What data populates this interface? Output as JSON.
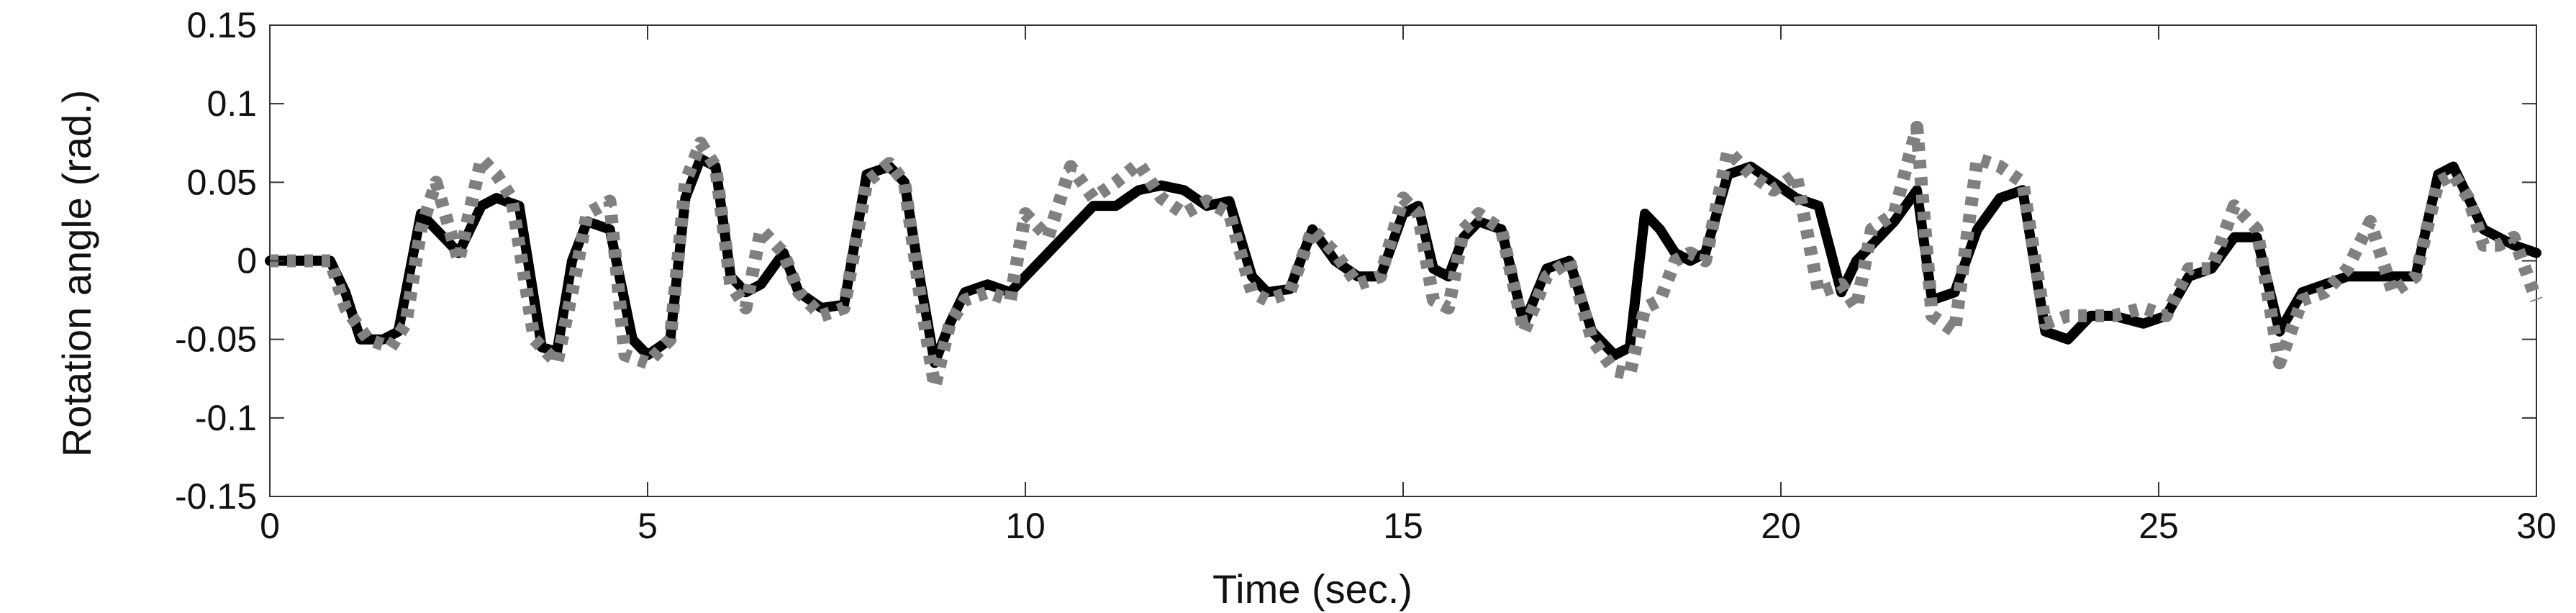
{
  "chart_data": {
    "type": "line",
    "title": "",
    "xlabel": "Time (sec.)",
    "ylabel": "Rotation angle (rad.)",
    "xlim": [
      0,
      30
    ],
    "ylim": [
      -0.15,
      0.15
    ],
    "xticks": [
      0,
      5,
      10,
      15,
      20,
      25,
      30
    ],
    "yticks": [
      -0.15,
      -0.1,
      -0.05,
      0,
      0.05,
      0.1,
      0.15
    ],
    "xtick_labels": [
      "0",
      "5",
      "10",
      "15",
      "20",
      "25",
      "30"
    ],
    "ytick_labels": [
      "-0.15",
      "-0.1",
      "-0.05",
      "0",
      "0.05",
      "0.1",
      "0.15"
    ],
    "grid": false,
    "legend": "none",
    "series": [
      {
        "color": "#000000",
        "style": "solid",
        "x": [
          0,
          0.8,
          1.0,
          1.2,
          1.5,
          1.7,
          2.0,
          2.2,
          2.5,
          2.8,
          3.0,
          3.3,
          3.6,
          3.8,
          4.0,
          4.2,
          4.5,
          4.8,
          5.0,
          5.3,
          5.5,
          5.7,
          5.9,
          6.1,
          6.3,
          6.5,
          6.8,
          7.0,
          7.3,
          7.6,
          7.9,
          8.2,
          8.4,
          8.6,
          8.8,
          9.0,
          9.2,
          9.5,
          9.8,
          10.0,
          10.3,
          10.6,
          10.9,
          11.2,
          11.5,
          11.8,
          12.1,
          12.4,
          12.7,
          13.0,
          13.2,
          13.5,
          13.8,
          14.1,
          14.4,
          14.7,
          15.0,
          15.2,
          15.4,
          15.6,
          15.8,
          16.0,
          16.3,
          16.6,
          16.9,
          17.2,
          17.5,
          17.8,
          18.0,
          18.2,
          18.4,
          18.6,
          18.8,
          19.0,
          19.3,
          19.6,
          19.9,
          20.2,
          20.5,
          20.8,
          21.0,
          21.2,
          21.5,
          21.8,
          22.0,
          22.3,
          22.6,
          22.9,
          23.2,
          23.5,
          23.8,
          24.1,
          24.4,
          24.8,
          25.1,
          25.4,
          25.7,
          26.0,
          26.3,
          26.6,
          26.9,
          27.2,
          27.5,
          27.8,
          28.1,
          28.4,
          28.7,
          28.9,
          29.1,
          29.3,
          29.5,
          29.7,
          30.0
        ],
        "y": [
          0,
          0,
          -0.02,
          -0.05,
          -0.05,
          -0.045,
          0.03,
          0.02,
          0.005,
          0.035,
          0.04,
          0.035,
          -0.055,
          -0.058,
          0.0,
          0.025,
          0.02,
          -0.05,
          -0.06,
          -0.05,
          0.04,
          0.065,
          0.06,
          -0.01,
          -0.02,
          -0.015,
          0.005,
          -0.02,
          -0.03,
          -0.028,
          0.055,
          0.06,
          0.05,
          -0.01,
          -0.065,
          -0.04,
          -0.02,
          -0.015,
          -0.02,
          -0.01,
          0.005,
          0.02,
          0.035,
          0.035,
          0.045,
          0.048,
          0.045,
          0.035,
          0.038,
          -0.01,
          -0.02,
          -0.018,
          0.02,
          0.0,
          -0.01,
          -0.01,
          0.03,
          0.035,
          -0.005,
          -0.01,
          0.015,
          0.025,
          0.02,
          -0.04,
          -0.005,
          0.0,
          -0.045,
          -0.06,
          -0.055,
          0.03,
          0.02,
          0.005,
          0.0,
          0.005,
          0.055,
          0.06,
          0.05,
          0.04,
          0.035,
          -0.02,
          0.0,
          0.01,
          0.025,
          0.045,
          -0.025,
          -0.02,
          0.02,
          0.04,
          0.045,
          -0.045,
          -0.05,
          -0.035,
          -0.035,
          -0.04,
          -0.035,
          -0.01,
          -0.005,
          0.015,
          0.015,
          -0.045,
          -0.02,
          -0.015,
          -0.01,
          -0.01,
          -0.01,
          -0.01,
          0.055,
          0.06,
          0.04,
          0.02,
          0.015,
          0.01,
          0.005
        ]
      },
      {
        "color": "#808080",
        "style": "dotted",
        "x": [
          0,
          0.8,
          1.0,
          1.3,
          1.6,
          1.8,
          2.0,
          2.2,
          2.5,
          2.8,
          3.0,
          3.2,
          3.5,
          3.8,
          4.0,
          4.2,
          4.5,
          4.7,
          5.0,
          5.3,
          5.5,
          5.7,
          5.9,
          6.1,
          6.3,
          6.5,
          6.8,
          7.0,
          7.3,
          7.6,
          7.9,
          8.2,
          8.4,
          8.6,
          8.8,
          9.0,
          9.2,
          9.5,
          9.8,
          10.0,
          10.3,
          10.6,
          10.9,
          11.2,
          11.5,
          11.8,
          12.1,
          12.4,
          12.7,
          13.0,
          13.2,
          13.5,
          13.8,
          14.1,
          14.4,
          14.7,
          15.0,
          15.2,
          15.4,
          15.6,
          15.8,
          16.0,
          16.3,
          16.6,
          16.9,
          17.2,
          17.5,
          17.8,
          18.0,
          18.2,
          18.4,
          18.6,
          18.8,
          19.0,
          19.3,
          19.6,
          19.9,
          20.2,
          20.5,
          20.8,
          21.0,
          21.2,
          21.5,
          21.8,
          22.0,
          22.3,
          22.6,
          22.9,
          23.2,
          23.5,
          23.8,
          24.1,
          24.4,
          24.8,
          25.1,
          25.4,
          25.7,
          26.0,
          26.3,
          26.6,
          26.9,
          27.2,
          27.5,
          27.8,
          28.1,
          28.4,
          28.7,
          28.9,
          29.1,
          29.3,
          29.5,
          29.7,
          30.0
        ],
        "y": [
          0,
          0,
          -0.03,
          -0.05,
          -0.055,
          -0.04,
          0.02,
          0.05,
          0.0,
          0.065,
          0.055,
          0.04,
          -0.05,
          -0.065,
          -0.02,
          0.03,
          0.038,
          -0.06,
          -0.065,
          -0.05,
          0.05,
          0.075,
          0.06,
          -0.015,
          -0.03,
          0.02,
          0.005,
          -0.02,
          -0.035,
          -0.03,
          0.05,
          0.062,
          0.05,
          -0.02,
          -0.08,
          -0.04,
          -0.025,
          -0.02,
          -0.025,
          0.03,
          0.015,
          0.06,
          0.04,
          0.05,
          0.062,
          0.04,
          0.03,
          0.038,
          0.03,
          -0.02,
          -0.025,
          -0.02,
          0.02,
          0.005,
          -0.015,
          -0.01,
          0.04,
          0.03,
          -0.025,
          -0.03,
          0.02,
          0.03,
          0.02,
          -0.045,
          -0.01,
          0.0,
          -0.05,
          -0.07,
          -0.072,
          -0.03,
          -0.025,
          0.0,
          0.005,
          0.0,
          0.07,
          0.055,
          0.045,
          0.055,
          -0.02,
          -0.015,
          -0.03,
          0.02,
          0.03,
          0.085,
          -0.035,
          -0.045,
          0.065,
          0.06,
          0.05,
          -0.04,
          -0.035,
          -0.035,
          -0.035,
          -0.03,
          -0.035,
          -0.005,
          -0.005,
          0.035,
          0.02,
          -0.065,
          -0.025,
          -0.02,
          -0.005,
          0.025,
          -0.02,
          -0.01,
          0.05,
          0.055,
          0.04,
          0.01,
          0.01,
          0.015,
          -0.025
        ]
      }
    ]
  }
}
